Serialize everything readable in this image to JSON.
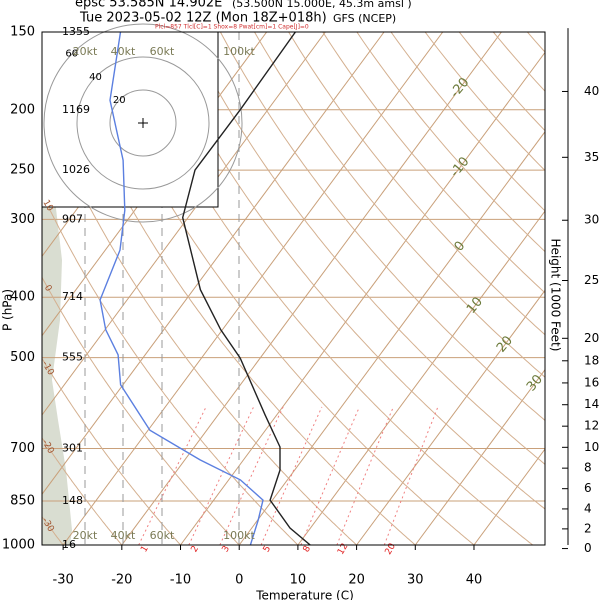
{
  "chart_data": {
    "type": "skewt",
    "title": "epsc 53.585N 14.902E",
    "title_note": "(53.500N 15.000E, 45.3m amsl )",
    "subtitle": "Tue 2023-05-02 12Z (Mon 18Z+018h)",
    "model": "GFS (NCEP)",
    "indices": "Plcl=857 Tlcl[C]=1 Shox=8 Pwat[cm]=1 Cape[J]=0",
    "x_label": "Temperature (C)",
    "y_label": "P (hPa)",
    "y2_label": "Height (1000 Feet)",
    "xlim": [
      -33.6,
      52.1
    ],
    "xticks": [
      -30,
      -20,
      -10,
      0,
      10,
      20,
      30,
      40
    ],
    "ylim": [
      150,
      1000
    ],
    "log_y": true,
    "yticks": [
      150,
      200,
      250,
      300,
      400,
      500,
      700,
      850,
      1000
    ],
    "height_labels": [
      1355,
      1169,
      1026,
      907,
      714,
      555,
      301,
      148,
      16
    ],
    "y2lim": [
      0.36,
      44.6
    ],
    "y2ticks": [
      0,
      2,
      4,
      6,
      8,
      10,
      12,
      14,
      16,
      18,
      20,
      25,
      30,
      35,
      40
    ],
    "speed_labels": [
      "20kt",
      "40kt",
      "60kt",
      "100kt"
    ],
    "hodograph_rings": [
      20,
      40,
      60
    ],
    "isotherm_labels": [
      -20,
      -10,
      0,
      10,
      20,
      30
    ],
    "dry_adiabat_labels": [
      10,
      0,
      -10,
      -20,
      -30
    ],
    "mixing_ratio_labels": [
      1,
      2,
      3,
      5,
      8,
      12,
      20
    ],
    "series": [
      {
        "color": "#222222",
        "pressure": [
          1000,
          939,
          847,
          758,
          696,
          618,
          501,
          451,
          389,
          298,
          250,
          200,
          150
        ],
        "values": [
          12.1,
          6.5,
          -0.4,
          -2.5,
          -5.4,
          -12.0,
          -23.4,
          -30.3,
          -38.8,
          -50.9,
          -54.8,
          -54.7,
          -55.1
        ]
      },
      {
        "color": "#5b7fe0",
        "pressure": [
          1000,
          912,
          847,
          786,
          730,
          654,
          553,
          495,
          451,
          404,
          336,
          290,
          241,
          193,
          150
        ],
        "values": [
          1.9,
          0.1,
          -1.6,
          -8.0,
          -17.4,
          -29.7,
          -40.4,
          -44.6,
          -49.9,
          -54.6,
          -57.5,
          -61.7,
          -68.3,
          -78.1,
          -84.9
        ]
      }
    ]
  }
}
